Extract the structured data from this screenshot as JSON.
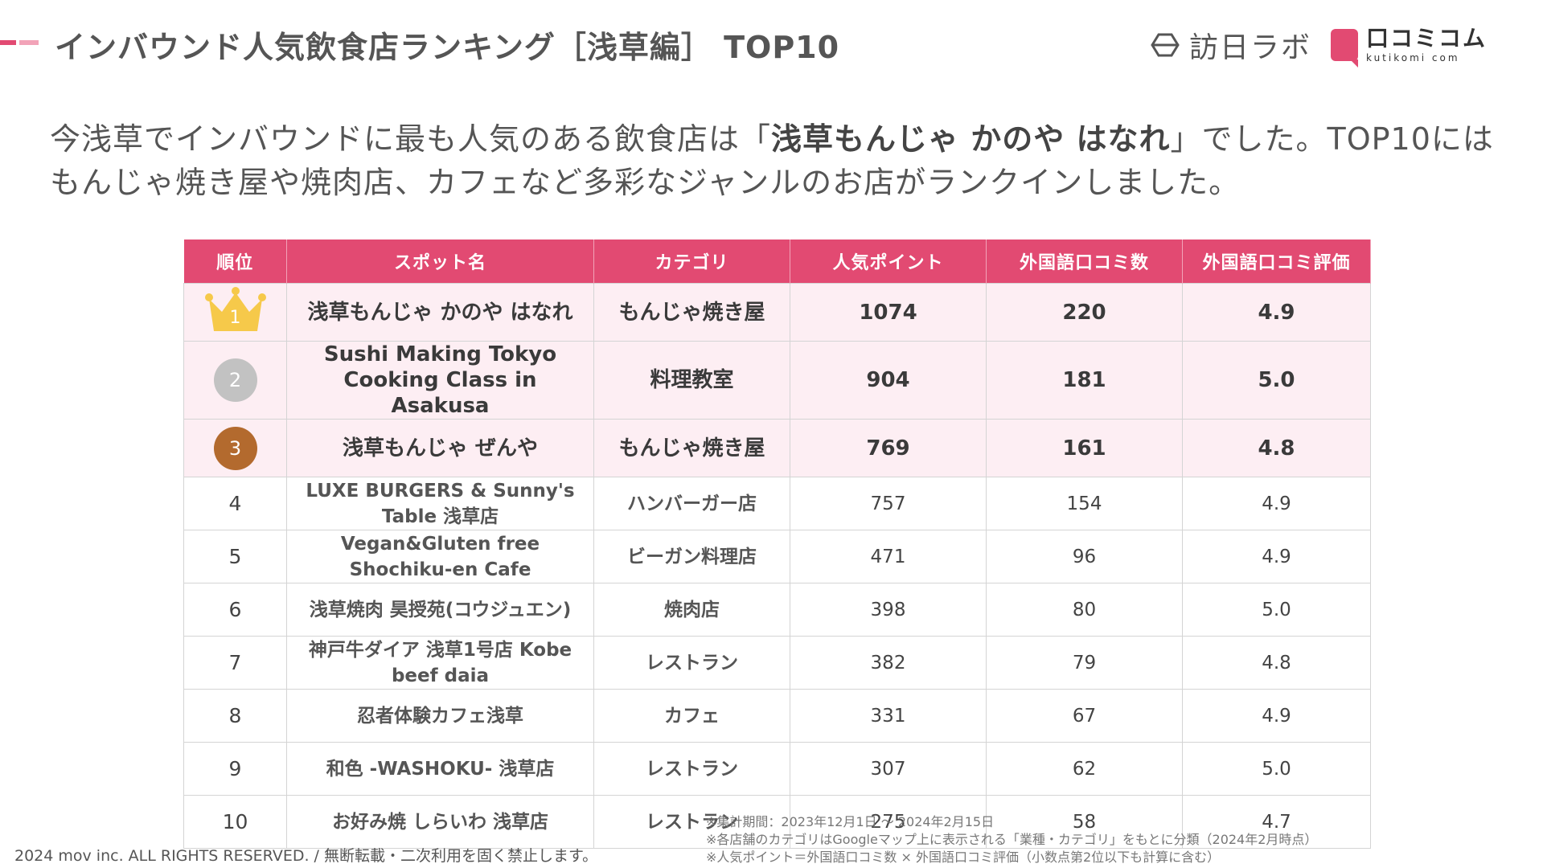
{
  "header": {
    "title": "インバウンド人気飲食店ランキング［浅草編］ TOP10",
    "accent_colors": [
      "#e24a72",
      "#f2a3b8"
    ]
  },
  "logos": {
    "honichi_text": "訪日ラボ",
    "kuchikomi_text": "口コミコム",
    "kuchikomi_sub": "kutikomi com"
  },
  "lead": {
    "before": "今浅草でインバウンドに最も人気のある飲食店は「",
    "highlight": "浅草もんじゃ かのや はなれ",
    "after": "」でした。TOP10にはもんじゃ焼き屋や焼肉店、カフェなど多彩なジャンルのお店がランクインしました。"
  },
  "table": {
    "header_color": "#e24a72",
    "columns": [
      "順位",
      "スポット名",
      "カテゴリ",
      "人気ポイント",
      "外国語口コミ数",
      "外国語口コミ評価"
    ],
    "rows": [
      {
        "rank": "1",
        "badge": "crown-icon",
        "spot": "浅草もんじゃ かのや はなれ",
        "category": "もんじゃ焼き屋",
        "points": "1074",
        "reviews": "220",
        "rating": "4.9"
      },
      {
        "rank": "2",
        "badge": "silver-medal-icon",
        "spot": "Sushi Making Tokyo Cooking Class in Asakusa",
        "category": "料理教室",
        "points": "904",
        "reviews": "181",
        "rating": "5.0"
      },
      {
        "rank": "3",
        "badge": "bronze-medal-icon",
        "spot": "浅草もんじゃ ぜんや",
        "category": "もんじゃ焼き屋",
        "points": "769",
        "reviews": "161",
        "rating": "4.8"
      },
      {
        "rank": "4",
        "spot": "LUXE BURGERS & Sunny's Table 浅草店",
        "category": "ハンバーガー店",
        "points": "757",
        "reviews": "154",
        "rating": "4.9"
      },
      {
        "rank": "5",
        "spot": "Vegan&Gluten free Shochiku-en Cafe",
        "category": "ビーガン料理店",
        "points": "471",
        "reviews": "96",
        "rating": "4.9"
      },
      {
        "rank": "6",
        "spot": "浅草焼肉 昊授苑(コウジュエン)",
        "category": "焼肉店",
        "points": "398",
        "reviews": "80",
        "rating": "5.0"
      },
      {
        "rank": "7",
        "spot": "神戸牛ダイア 浅草1号店 Kobe beef daia",
        "category": "レストラン",
        "points": "382",
        "reviews": "79",
        "rating": "4.8"
      },
      {
        "rank": "8",
        "spot": "忍者体験カフェ浅草",
        "category": "カフェ",
        "points": "331",
        "reviews": "67",
        "rating": "4.9"
      },
      {
        "rank": "9",
        "spot": "和色 -WASHOKU- 浅草店",
        "category": "レストラン",
        "points": "307",
        "reviews": "62",
        "rating": "5.0"
      },
      {
        "rank": "10",
        "spot": "お好み焼 しらいわ 浅草店",
        "category": "レストラン",
        "points": "275",
        "reviews": "58",
        "rating": "4.7"
      }
    ]
  },
  "footer": {
    "copyright": "2024 mov inc. ALL RIGHTS RESERVED. / 無断転載・二次利用を固く禁止します。",
    "notes": [
      "※集計期間：2023年12月1日 〜 2024年2月15日",
      "※各店舗のカテゴリはGoogleマップ上に表示される「業種・カテゴリ」をもとに分類（2024年2月時点）",
      "※人気ポイント＝外国語口コミ数 × 外国語口コミ評価（小数点第2位以下も計算に含む）"
    ]
  }
}
